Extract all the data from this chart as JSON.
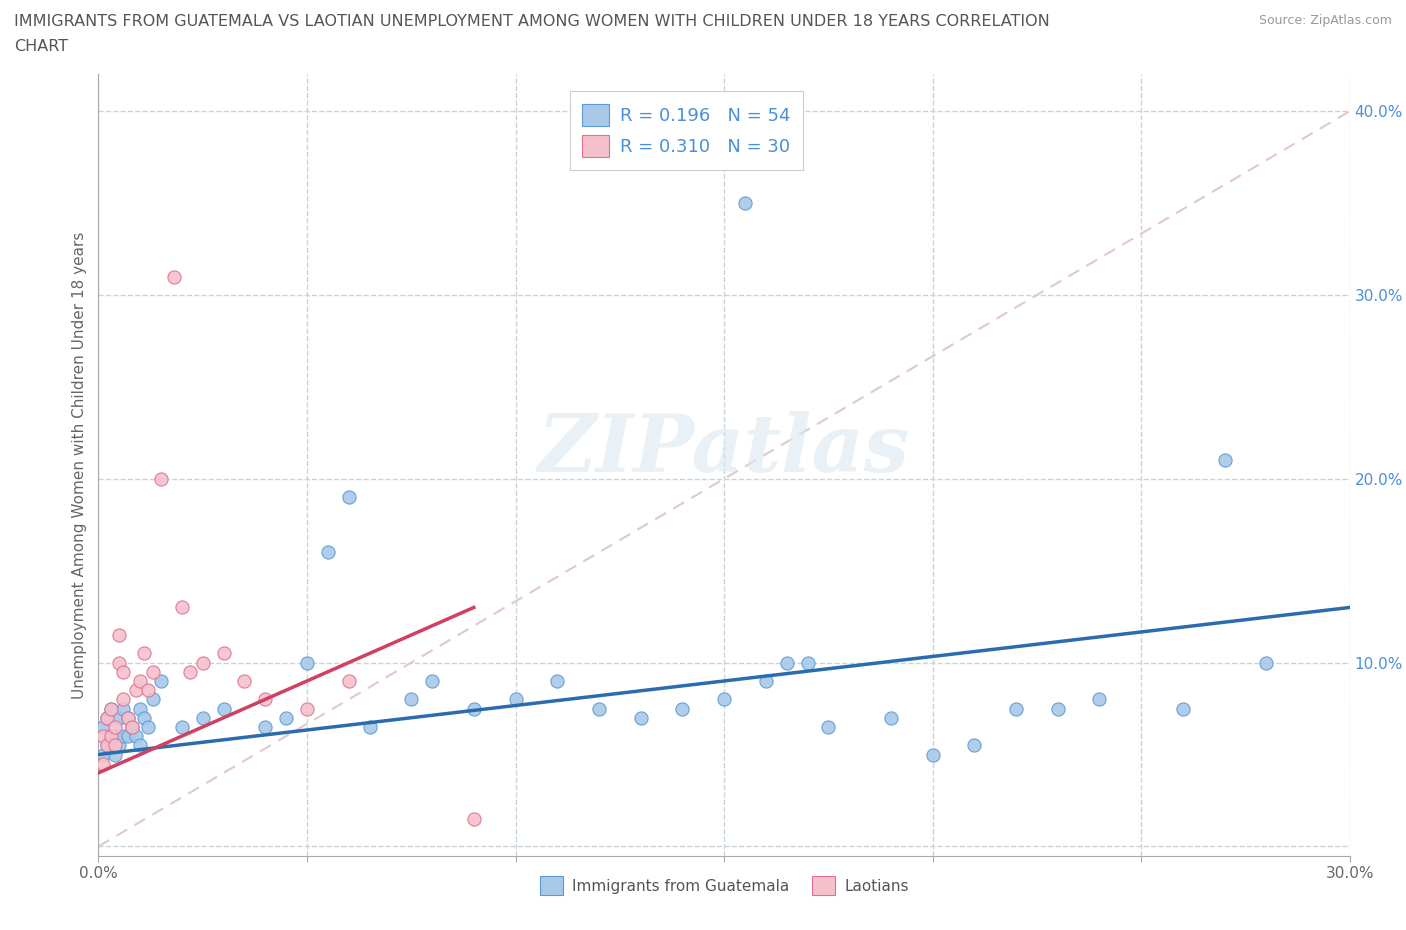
{
  "title_line1": "IMMIGRANTS FROM GUATEMALA VS LAOTIAN UNEMPLOYMENT AMONG WOMEN WITH CHILDREN UNDER 18 YEARS CORRELATION",
  "title_line2": "CHART",
  "source": "Source: ZipAtlas.com",
  "ylabel": "Unemployment Among Women with Children Under 18 years",
  "xlim": [
    0.0,
    0.3
  ],
  "ylim": [
    -0.005,
    0.42
  ],
  "x_ticks": [
    0.0,
    0.05,
    0.1,
    0.15,
    0.2,
    0.25,
    0.3
  ],
  "x_tick_labels": [
    "0.0%",
    "",
    "",
    "",
    "",
    "",
    "30.0%"
  ],
  "y_ticks": [
    0.0,
    0.1,
    0.2,
    0.3,
    0.4
  ],
  "y_tick_labels": [
    "",
    "10.0%",
    "20.0%",
    "30.0%",
    "40.0%"
  ],
  "watermark": "ZIPatlas",
  "blue_scatter_color": "#A8C8E8",
  "blue_edge_color": "#5B9BD5",
  "pink_scatter_color": "#F5C0CC",
  "pink_edge_color": "#E07090",
  "blue_line_color": "#2B6CB0",
  "pink_line_color": "#D04060",
  "diag_line_color": "#E0C8D0",
  "R_guatemala": 0.196,
  "N_guatemala": 54,
  "R_laotian": 0.31,
  "N_laotian": 30,
  "guatemala_x": [
    0.001,
    0.001,
    0.002,
    0.002,
    0.003,
    0.003,
    0.004,
    0.004,
    0.005,
    0.005,
    0.006,
    0.006,
    0.007,
    0.007,
    0.008,
    0.009,
    0.01,
    0.01,
    0.011,
    0.012,
    0.013,
    0.015,
    0.02,
    0.025,
    0.03,
    0.04,
    0.045,
    0.05,
    0.055,
    0.06,
    0.065,
    0.075,
    0.08,
    0.09,
    0.1,
    0.11,
    0.12,
    0.13,
    0.14,
    0.15,
    0.155,
    0.16,
    0.165,
    0.17,
    0.175,
    0.19,
    0.2,
    0.21,
    0.22,
    0.23,
    0.24,
    0.26,
    0.27,
    0.28
  ],
  "guatemala_y": [
    0.05,
    0.065,
    0.055,
    0.07,
    0.06,
    0.075,
    0.05,
    0.06,
    0.055,
    0.07,
    0.06,
    0.075,
    0.06,
    0.07,
    0.065,
    0.06,
    0.055,
    0.075,
    0.07,
    0.065,
    0.08,
    0.09,
    0.065,
    0.07,
    0.075,
    0.065,
    0.07,
    0.1,
    0.16,
    0.19,
    0.065,
    0.08,
    0.09,
    0.075,
    0.08,
    0.09,
    0.075,
    0.07,
    0.075,
    0.08,
    0.35,
    0.09,
    0.1,
    0.1,
    0.065,
    0.07,
    0.05,
    0.055,
    0.075,
    0.075,
    0.08,
    0.075,
    0.21,
    0.1
  ],
  "laotian_x": [
    0.001,
    0.001,
    0.002,
    0.002,
    0.003,
    0.003,
    0.004,
    0.004,
    0.005,
    0.005,
    0.006,
    0.006,
    0.007,
    0.008,
    0.009,
    0.01,
    0.011,
    0.012,
    0.013,
    0.015,
    0.018,
    0.02,
    0.022,
    0.025,
    0.03,
    0.035,
    0.04,
    0.05,
    0.06,
    0.09
  ],
  "laotian_y": [
    0.045,
    0.06,
    0.055,
    0.07,
    0.06,
    0.075,
    0.055,
    0.065,
    0.1,
    0.115,
    0.08,
    0.095,
    0.07,
    0.065,
    0.085,
    0.09,
    0.105,
    0.085,
    0.095,
    0.2,
    0.31,
    0.13,
    0.095,
    0.1,
    0.105,
    0.09,
    0.08,
    0.075,
    0.09,
    0.015
  ]
}
